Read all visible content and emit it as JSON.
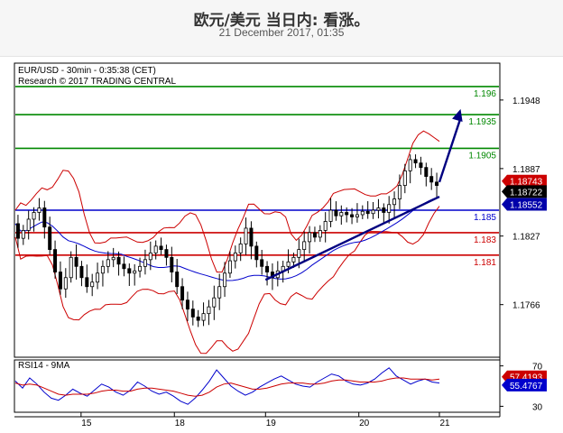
{
  "header": {
    "title": "欧元/美元 当日内: 看涨。",
    "subtitle": "21 December 2017, 01:35"
  },
  "colors": {
    "resistance": "#008800",
    "pivot": "#0000cc",
    "support": "#cc0000",
    "trendline": "#000080",
    "price_tag_red": "#cc0000",
    "price_tag_black": "#000000",
    "price_tag_blue": "#0000aa",
    "rsi_blue": "#0000cc",
    "rsi_red": "#cc0000"
  },
  "chart_data": [
    {
      "type": "candlestick",
      "info_line1": "EUR/USD - 30min - 0:35:38 (CET)",
      "info_line2": "Research © 2017 TRADING CENTRAL",
      "ylim": [
        1.172,
        1.198
      ],
      "y_ticks": [
        "1.1948",
        "1.1887",
        "1.1827",
        "1.1766"
      ],
      "x_ticks": [
        "15",
        "18",
        "19",
        "20",
        "21"
      ],
      "levels": [
        {
          "label": "1.196",
          "value": 1.196,
          "kind": "resistance"
        },
        {
          "label": "1.1935",
          "value": 1.1935,
          "kind": "resistance"
        },
        {
          "label": "1.1905",
          "value": 1.1905,
          "kind": "resistance"
        },
        {
          "label": "1.185",
          "value": 1.185,
          "kind": "pivot"
        },
        {
          "label": "1.183",
          "value": 1.183,
          "kind": "support"
        },
        {
          "label": "1.181",
          "value": 1.181,
          "kind": "support"
        }
      ],
      "price_tags": [
        {
          "label": "1.18743",
          "value": 1.18743,
          "color": "red"
        },
        {
          "label": "1.18722",
          "value": 1.18722,
          "color": "black"
        },
        {
          "label": "1.18552",
          "value": 1.18552,
          "color": "blue"
        }
      ],
      "price_series": [
        1.1838,
        1.1825,
        1.1832,
        1.1842,
        1.1848,
        1.1852,
        1.1835,
        1.1815,
        1.1795,
        1.178,
        1.179,
        1.1808,
        1.18,
        1.179,
        1.1782,
        1.1786,
        1.1794,
        1.18,
        1.1806,
        1.1808,
        1.1802,
        1.1798,
        1.1794,
        1.1796,
        1.18,
        1.1806,
        1.1812,
        1.1818,
        1.1815,
        1.1808,
        1.1795,
        1.1782,
        1.177,
        1.1762,
        1.1755,
        1.1752,
        1.1758,
        1.1764,
        1.1772,
        1.1782,
        1.1794,
        1.1805,
        1.1812,
        1.182,
        1.1834,
        1.1818,
        1.1806,
        1.18,
        1.1795,
        1.179,
        1.1796,
        1.18,
        1.1804,
        1.1808,
        1.1815,
        1.1822,
        1.183,
        1.1826,
        1.1832,
        1.184,
        1.185,
        1.1845,
        1.1848,
        1.1846,
        1.1844,
        1.1846,
        1.1849,
        1.1847,
        1.185,
        1.1852,
        1.1848,
        1.1855,
        1.186,
        1.1872,
        1.1885,
        1.1895,
        1.1892,
        1.1888,
        1.188,
        1.1875,
        1.1872
      ],
      "trendline": {
        "start": [
          0.59,
          1.1788
        ],
        "end": [
          1.0,
          1.1862
        ]
      },
      "forecast_arrow": {
        "start": [
          1.0,
          1.1875
        ],
        "end": [
          1.05,
          1.194
        ]
      }
    },
    {
      "type": "line",
      "title": "RSI14 - 9MA",
      "ylim": [
        25,
        75
      ],
      "y_ticks": [
        "70",
        "30"
      ],
      "tags": [
        {
          "label": "57.4193",
          "value": 57.4193,
          "color": "red"
        },
        {
          "label": "55.4767",
          "value": 55.4767,
          "color": "blue"
        }
      ],
      "series": [
        {
          "color": "blue",
          "values": [
            55,
            48,
            58,
            52,
            44,
            38,
            36,
            41,
            47,
            43,
            40,
            46,
            52,
            49,
            44,
            41,
            46,
            54,
            50,
            45,
            42,
            44,
            40,
            35,
            32,
            38,
            46,
            55,
            66,
            58,
            50,
            45,
            41,
            44,
            49,
            53,
            57,
            60,
            56,
            52,
            50,
            49,
            54,
            58,
            62,
            60,
            55,
            52,
            51,
            53,
            57,
            63,
            68,
            60,
            56,
            52,
            55,
            57,
            54,
            53
          ]
        },
        {
          "color": "red",
          "values": [
            53,
            51,
            52,
            51,
            48,
            45,
            42,
            41,
            42,
            42,
            42,
            43,
            45,
            46,
            46,
            45,
            45,
            47,
            48,
            48,
            47,
            46,
            45,
            43,
            41,
            40,
            41,
            44,
            49,
            52,
            53,
            51,
            49,
            47,
            47,
            48,
            50,
            52,
            53,
            53,
            53,
            52,
            52,
            53,
            55,
            56,
            56,
            55,
            54,
            54,
            54,
            55,
            57,
            58,
            58,
            57,
            57,
            57,
            56,
            57
          ]
        }
      ]
    }
  ]
}
